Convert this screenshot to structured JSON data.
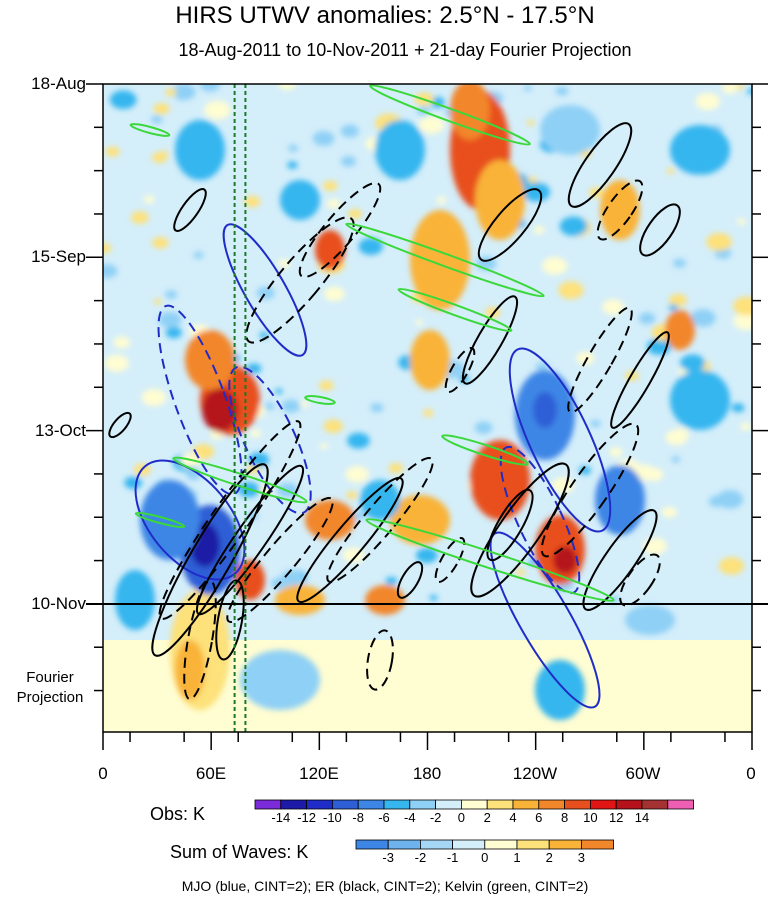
{
  "chart_data": {
    "type": "heatmap",
    "title": "HIRS UTWV anomalies: 2.5°N - 17.5°N",
    "subtitle": "18-Aug-2011 to 10-Nov-2011 + 21-day Fourier Projection",
    "xlabel": "",
    "ylabel": "",
    "x_ticks": [
      "0",
      "60E",
      "120E",
      "180",
      "120W",
      "60W",
      "0"
    ],
    "y_ticks": [
      "18-Aug",
      "15-Sep",
      "13-Oct",
      "10-Nov"
    ],
    "projection_label": "Fourier\nProjection",
    "obs_colorbar": {
      "label": "Obs: K",
      "levels": [
        -14,
        -12,
        -10,
        -8,
        -6,
        -4,
        -2,
        0,
        2,
        4,
        6,
        8,
        10,
        12,
        14
      ],
      "colors": [
        "#7b2bd9",
        "#1c1aa6",
        "#1f2cc7",
        "#2e5fd6",
        "#3d86e6",
        "#35b6ef",
        "#8fd0f6",
        "#d4eefa",
        "#fffdd2",
        "#fde17a",
        "#f9b339",
        "#f2862a",
        "#e84f1e",
        "#e11514",
        "#b5121b",
        "#a53232",
        "#ee5fb4"
      ]
    },
    "wave_colorbar": {
      "label": "Sum of Waves: K",
      "levels": [
        -3,
        -2,
        -1,
        0,
        1,
        2,
        3
      ],
      "colors": [
        "#3d86e6",
        "#6fb3ee",
        "#a6d6f5",
        "#d4eefa",
        "#fffdd2",
        "#fde17a",
        "#f9b339",
        "#f2862a"
      ]
    },
    "footer": "MJO (blue, CINT=2); ER (black, CINT=2); Kelvin (green, CINT=2)",
    "vertical_lines_x_deg": [
      73,
      79
    ],
    "projection_start": "10-Nov"
  }
}
